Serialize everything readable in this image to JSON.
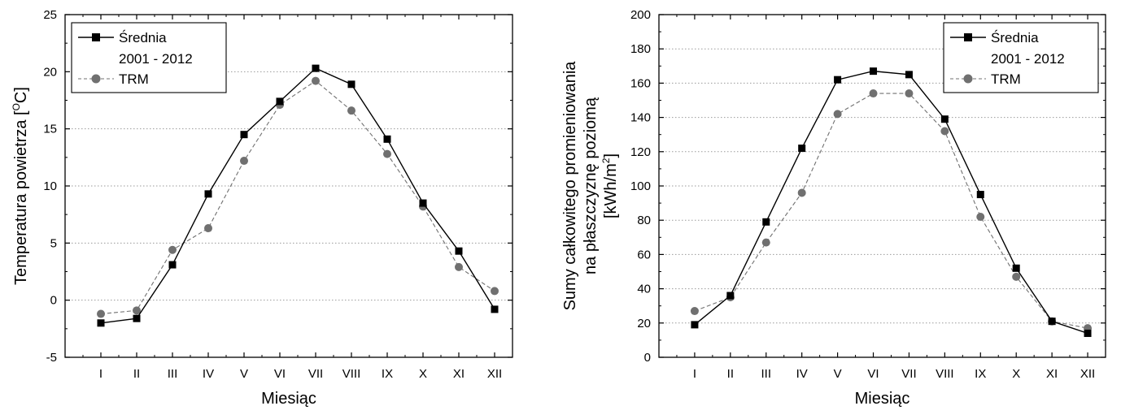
{
  "chart_data": [
    {
      "type": "line",
      "title": "",
      "xlabel": "Miesiąc",
      "ylabel": "Temperatura powietrza [",
      "ylabel_sup": "O",
      "ylabel_suffix": "C]",
      "categories": [
        "I",
        "II",
        "III",
        "IV",
        "V",
        "VI",
        "VII",
        "VIII",
        "IX",
        "X",
        "XI",
        "XII"
      ],
      "ylim": [
        -5,
        25
      ],
      "yticks": [
        -5,
        0,
        5,
        10,
        15,
        20,
        25
      ],
      "grid": "horizontal dotted",
      "legend_position": "top-left",
      "legend": {
        "line1": "Średnia",
        "line2": "2001 - 2012",
        "line3": "TRM"
      },
      "series": [
        {
          "name": "Średnia 2001 - 2012",
          "marker": "square",
          "style": "solid",
          "color": "#000000",
          "values": [
            -2.0,
            -1.6,
            3.1,
            9.3,
            14.5,
            17.4,
            20.3,
            18.9,
            14.1,
            8.5,
            4.3,
            -0.8
          ]
        },
        {
          "name": "TRM",
          "marker": "circle",
          "style": "dashed",
          "color": "#707070",
          "values": [
            -1.2,
            -0.9,
            4.4,
            6.3,
            12.2,
            17.1,
            19.2,
            16.6,
            12.8,
            8.2,
            2.9,
            0.8
          ]
        }
      ]
    },
    {
      "type": "line",
      "title": "",
      "xlabel": "Miesiąc",
      "ylabel_line1": "Sumy całkowitego promieniowania",
      "ylabel_line2": "na płaszczyznę poziomą",
      "ylabel_line3": "[kWh/m",
      "ylabel_sup": "2",
      "ylabel_suffix": "]",
      "categories": [
        "I",
        "II",
        "III",
        "IV",
        "V",
        "VI",
        "VII",
        "VIII",
        "IX",
        "X",
        "XI",
        "XII"
      ],
      "ylim": [
        0,
        200
      ],
      "yticks": [
        0,
        20,
        40,
        60,
        80,
        100,
        120,
        140,
        160,
        180,
        200
      ],
      "grid": "horizontal dotted",
      "legend_position": "top-right",
      "legend": {
        "line1": "Średnia",
        "line2": "2001 - 2012",
        "line3": "TRM"
      },
      "series": [
        {
          "name": "Średnia 2001 - 2012",
          "marker": "square",
          "style": "solid",
          "color": "#000000",
          "values": [
            19,
            36,
            79,
            122,
            162,
            167,
            165,
            139,
            95,
            52,
            21,
            14
          ]
        },
        {
          "name": "TRM",
          "marker": "circle",
          "style": "dashed",
          "color": "#707070",
          "values": [
            27,
            35,
            67,
            96,
            142,
            154,
            154,
            132,
            82,
            47,
            21,
            17
          ]
        }
      ]
    }
  ]
}
